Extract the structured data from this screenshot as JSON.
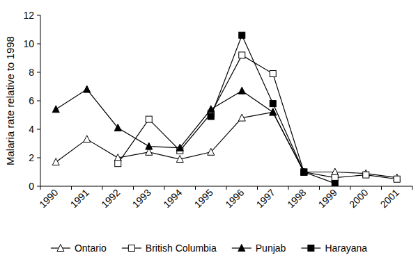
{
  "chart_data": {
    "type": "line",
    "y_label": "Malaria rate relative to 1998",
    "categories": [
      "1990",
      "1991",
      "1992",
      "1993",
      "1994",
      "1995",
      "1996",
      "1997",
      "1998",
      "1999",
      "2000",
      "2001"
    ],
    "series": [
      {
        "name": "Ontario",
        "color": "#000000",
        "marker": "triangle-open",
        "values": [
          1.7,
          3.3,
          2.0,
          2.4,
          1.9,
          2.4,
          4.8,
          5.2,
          1.0,
          1.0,
          0.9,
          0.6
        ]
      },
      {
        "name": "British Columbia",
        "color": "#000000",
        "marker": "square-open",
        "values": [
          null,
          null,
          1.6,
          4.7,
          2.5,
          5.1,
          9.2,
          7.9,
          1.0,
          0.6,
          0.8,
          0.5
        ]
      },
      {
        "name": "Punjab",
        "color": "#000000",
        "marker": "triangle",
        "values": [
          5.4,
          6.8,
          4.1,
          2.8,
          2.7,
          5.4,
          6.7,
          5.2,
          1.0,
          null,
          null,
          null
        ]
      },
      {
        "name": "Harayana",
        "color": "#000000",
        "marker": "square",
        "values": [
          null,
          null,
          null,
          null,
          null,
          4.9,
          10.6,
          5.8,
          1.0,
          0.2,
          null,
          null
        ]
      }
    ],
    "ylim": [
      0,
      12
    ],
    "yticks": [
      0,
      2,
      4,
      6,
      8,
      10,
      12
    ],
    "grid": false,
    "legend": "bottom"
  }
}
